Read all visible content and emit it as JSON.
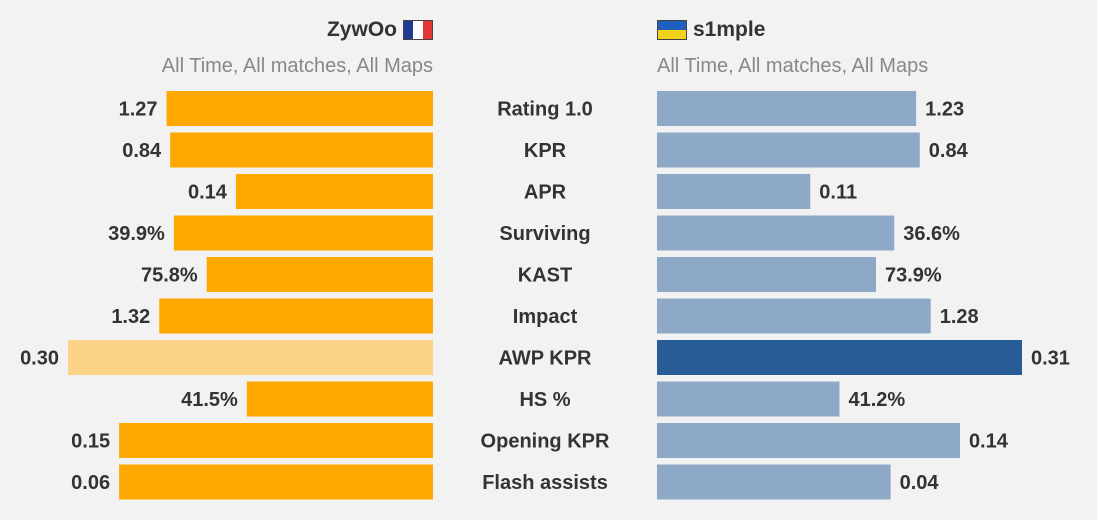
{
  "players": {
    "left": {
      "name": "ZywOo",
      "filter": "All Time, All matches, All Maps",
      "flag_icon": "france-flag-icon"
    },
    "right": {
      "name": "s1mple",
      "filter": "All Time, All matches, All Maps",
      "flag_icon": "ukraine-flag-icon"
    }
  },
  "colors": {
    "left_bar": "#ffa800",
    "left_bar_light": "#fcd287",
    "right_bar": "#8ea9c8",
    "right_bar_dark": "#285c96",
    "text": "#333333"
  },
  "chart_data": {
    "type": "bar",
    "orientation": "horizontal-mirrored",
    "categories": [
      "Rating 1.0",
      "KPR",
      "APR",
      "Surviving",
      "KAST",
      "Impact",
      "AWP KPR",
      "HS %",
      "Opening KPR",
      "Flash assists"
    ],
    "series": [
      {
        "name": "ZywOo",
        "values": [
          1.27,
          0.84,
          0.14,
          39.9,
          75.8,
          1.32,
          0.3,
          41.5,
          0.15,
          0.06
        ],
        "labels": [
          "1.27",
          "0.84",
          "0.14",
          "39.9%",
          "75.8%",
          "1.32",
          "0.30",
          "41.5%",
          "0.15",
          "0.06"
        ],
        "bar_fraction": [
          0.73,
          0.72,
          0.54,
          0.71,
          0.62,
          0.75,
          1.0,
          0.51,
          0.86,
          0.86
        ],
        "highlight": [
          false,
          false,
          false,
          false,
          false,
          false,
          true,
          false,
          false,
          false
        ]
      },
      {
        "name": "s1mple",
        "values": [
          1.23,
          0.84,
          0.11,
          36.6,
          73.9,
          1.28,
          0.31,
          41.2,
          0.14,
          0.04
        ],
        "labels": [
          "1.23",
          "0.84",
          "0.11",
          "36.6%",
          "73.9%",
          "1.28",
          "0.31",
          "41.2%",
          "0.14",
          "0.04"
        ],
        "bar_fraction": [
          0.71,
          0.72,
          0.42,
          0.65,
          0.6,
          0.75,
          1.0,
          0.5,
          0.83,
          0.64
        ],
        "highlight": [
          false,
          false,
          false,
          false,
          false,
          false,
          true,
          false,
          false,
          false
        ]
      }
    ]
  }
}
